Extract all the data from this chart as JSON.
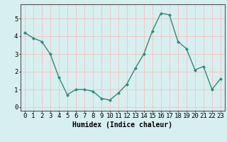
{
  "x": [
    0,
    1,
    2,
    3,
    4,
    5,
    6,
    7,
    8,
    9,
    10,
    11,
    12,
    13,
    14,
    15,
    16,
    17,
    18,
    19,
    20,
    21,
    22,
    23
  ],
  "y": [
    4.2,
    3.9,
    3.7,
    3.0,
    1.7,
    0.7,
    1.0,
    1.0,
    0.9,
    0.5,
    0.4,
    0.8,
    1.3,
    2.2,
    3.0,
    4.3,
    5.3,
    5.2,
    3.7,
    3.3,
    2.1,
    2.3,
    1.0,
    1.6
  ],
  "xlabel": "Humidex (Indice chaleur)",
  "ylim": [
    -0.2,
    5.8
  ],
  "xlim": [
    -0.5,
    23.5
  ],
  "line_color": "#2e8b7a",
  "marker_color": "#2e8b7a",
  "bg_color": "#d8efef",
  "grid_color": "#f5c0c0",
  "ytick_grid_color": "#c8e8e8",
  "tick_labels": [
    "0",
    "1",
    "2",
    "3",
    "4",
    "5",
    "6",
    "7",
    "8",
    "9",
    "10",
    "11",
    "12",
    "13",
    "14",
    "15",
    "16",
    "17",
    "18",
    "19",
    "20",
    "21",
    "22",
    "23"
  ],
  "yticks": [
    0,
    1,
    2,
    3,
    4,
    5
  ],
  "xlabel_fontsize": 7,
  "tick_fontsize": 6.5
}
